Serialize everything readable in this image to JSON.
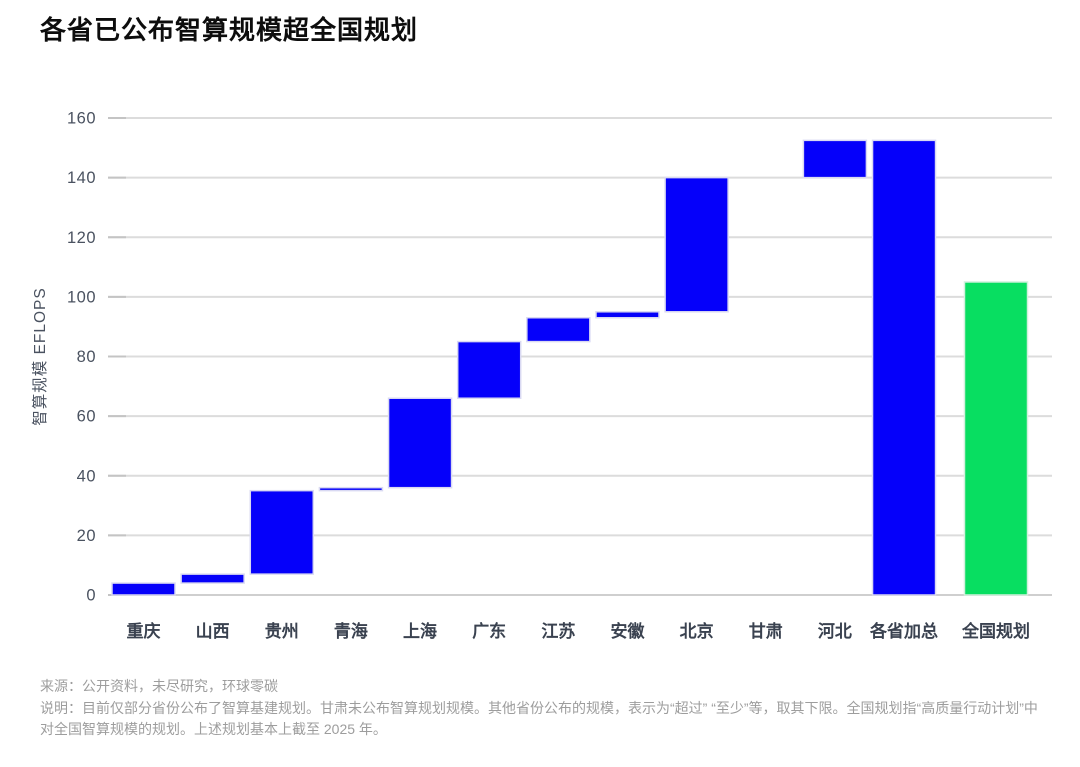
{
  "title": "各省已公布智算规模超全国规划",
  "colors": {
    "bar_blue": "#0500fa",
    "bar_green": "#08de61",
    "bar_blue_border": "#d9d9f2",
    "bar_green_border": "#d2f0de",
    "grid_line": "#dcdcdc",
    "axis_line": "#cfcfcf",
    "tick_mark": "#c4c4c4",
    "y_axis_text": "#4a5260",
    "x_axis_text": "#3a4250",
    "title_text": "#0d0d0d",
    "footer_text": "#9d9d9d"
  },
  "chart_data": {
    "type": "bar",
    "subtype": "waterfall",
    "title": "各省已公布智算规模超全国规划",
    "ylabel": "智算规模 EFLOPS",
    "xlabel": "",
    "ylim": [
      0,
      160
    ],
    "yticks": [
      0,
      20,
      40,
      60,
      80,
      100,
      120,
      140,
      160
    ],
    "grid": true,
    "legend": false,
    "categories": [
      "重庆",
      "山西",
      "贵州",
      "青海",
      "上海",
      "广东",
      "江苏",
      "安徽",
      "北京",
      "甘肃",
      "河北",
      "各省加总",
      "全国规划"
    ],
    "bars": [
      {
        "id": "chongqing",
        "label": "重庆",
        "start": 0,
        "end": 4,
        "value": 4,
        "color": "blue"
      },
      {
        "id": "shanxi",
        "label": "山西",
        "start": 4,
        "end": 7,
        "value": 3,
        "color": "blue"
      },
      {
        "id": "guizhou",
        "label": "贵州",
        "start": 7,
        "end": 35,
        "value": 28,
        "color": "blue"
      },
      {
        "id": "qinghai",
        "label": "青海",
        "start": 35,
        "end": 36,
        "value": 1,
        "color": "blue"
      },
      {
        "id": "shanghai",
        "label": "上海",
        "start": 36,
        "end": 66,
        "value": 30,
        "color": "blue"
      },
      {
        "id": "guangdong",
        "label": "广东",
        "start": 66,
        "end": 85,
        "value": 19,
        "color": "blue"
      },
      {
        "id": "jiangsu",
        "label": "江苏",
        "start": 85,
        "end": 93,
        "value": 8,
        "color": "blue"
      },
      {
        "id": "anhui",
        "label": "安徽",
        "start": 93,
        "end": 95,
        "value": 2,
        "color": "blue"
      },
      {
        "id": "beijing",
        "label": "北京",
        "start": 95,
        "end": 140,
        "value": 45,
        "color": "blue"
      },
      {
        "id": "gansu",
        "label": "甘肃",
        "start": 140,
        "end": 140,
        "value": 0,
        "color": "blue"
      },
      {
        "id": "hebei",
        "label": "河北",
        "start": 140,
        "end": 152.5,
        "value": 12.5,
        "color": "blue"
      },
      {
        "id": "provinces-total",
        "label": "各省加总",
        "start": 0,
        "end": 152.5,
        "value": 152.5,
        "color": "blue"
      },
      {
        "id": "national-plan",
        "label": "全国规划",
        "start": 0,
        "end": 105,
        "value": 105,
        "color": "green"
      }
    ]
  },
  "footer": {
    "source": "来源：公开资料，未尽研究，环球零碳",
    "note": "说明：目前仅部分省份公布了智算基建规划。甘肃未公布智算规划规模。其他省份公布的规模，表示为“超过” “至少”等，取其下限。全国规划指“高质量行动计划”中对全国智算规模的规划。上述规划基本上截至 2025 年。"
  }
}
